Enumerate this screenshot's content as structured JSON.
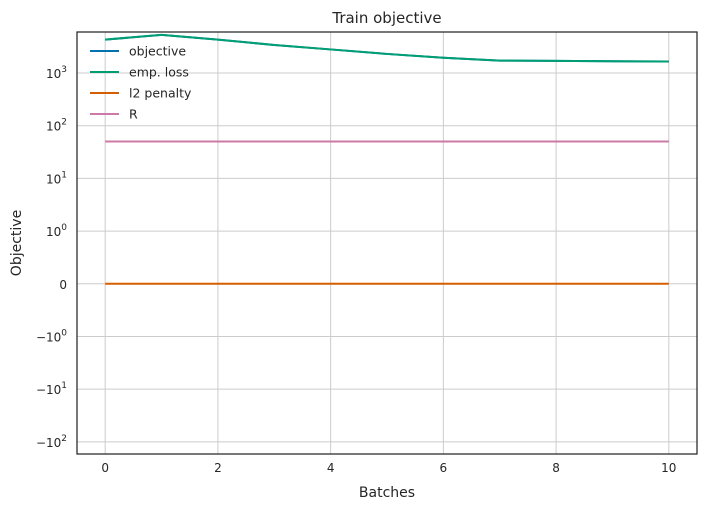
{
  "chart_data": {
    "type": "line",
    "title": "Train objective",
    "xlabel": "Batches",
    "ylabel": "Objective",
    "yscale": "symlog",
    "xlim": [
      -0.5,
      10.5
    ],
    "ylim": [
      -170,
      6000
    ],
    "x_ticks": [
      0,
      2,
      4,
      6,
      8,
      10
    ],
    "x_tick_labels": [
      "0",
      "2",
      "4",
      "6",
      "8",
      "10"
    ],
    "y_ticks": [
      {
        "value": 1000,
        "base": "10",
        "exp": "3"
      },
      {
        "value": 100,
        "base": "10",
        "exp": "2"
      },
      {
        "value": 10,
        "base": "10",
        "exp": "1"
      },
      {
        "value": 1,
        "base": "10",
        "exp": "0"
      },
      {
        "value": 0,
        "base": "0",
        "exp": ""
      },
      {
        "value": -1,
        "base": "−10",
        "exp": "0"
      },
      {
        "value": -10,
        "base": "−10",
        "exp": "1"
      },
      {
        "value": -100,
        "base": "−10",
        "exp": "2"
      }
    ],
    "grid": true,
    "legend_position": "top-left",
    "x": [
      0,
      1,
      2,
      3,
      4,
      5,
      6,
      7,
      8,
      9,
      10
    ],
    "series": [
      {
        "name": "objective",
        "color": "#0072b2",
        "values": [
          4300,
          5300,
          4300,
          3400,
          2800,
          2300,
          1950,
          1720,
          1700,
          1670,
          1650
        ]
      },
      {
        "name": "emp. loss",
        "color": "#009e73",
        "values": [
          4300,
          5300,
          4300,
          3400,
          2800,
          2300,
          1950,
          1720,
          1700,
          1670,
          1650
        ]
      },
      {
        "name": "l2 penalty",
        "color": "#d55e00",
        "values": [
          0,
          0,
          0,
          0,
          0,
          0,
          0,
          0,
          0,
          0,
          0
        ]
      },
      {
        "name": "R",
        "color": "#cc79a7",
        "values": [
          50,
          50,
          50,
          50,
          50,
          50,
          50,
          50,
          50,
          50,
          50
        ]
      }
    ]
  }
}
